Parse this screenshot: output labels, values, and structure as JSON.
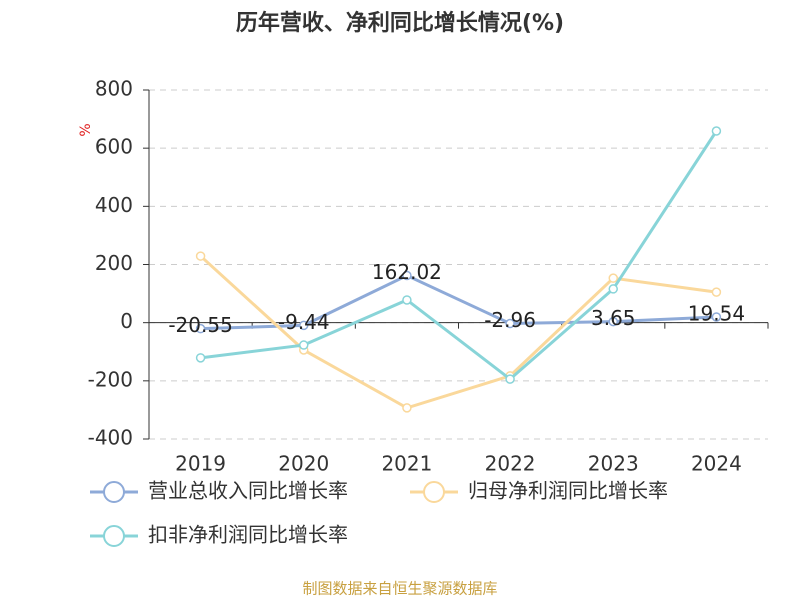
{
  "chart_data": {
    "type": "line",
    "title": "历年营收、净利同比增长情况(%)",
    "y_unit": "%",
    "categories": [
      "2019",
      "2020",
      "2021",
      "2022",
      "2023",
      "2024"
    ],
    "series": [
      {
        "name": "营业总收入同比增长率",
        "color": "#8eaad8",
        "values": [
          -20.55,
          -9.44,
          162.02,
          -2.96,
          3.65,
          19.54
        ],
        "show_labels": true
      },
      {
        "name": "归母净利润同比增长率",
        "color": "#fad89b",
        "values": [
          229,
          -94,
          -293,
          -183,
          153,
          105
        ],
        "show_labels": false
      },
      {
        "name": "扣非净利润同比增长率",
        "color": "#88d4d8",
        "values": [
          -121,
          -77,
          78,
          -194,
          116,
          659
        ],
        "show_labels": false
      }
    ],
    "ylim": [
      -400,
      800
    ],
    "yticks": [
      -400,
      -200,
      0,
      200,
      400,
      600,
      800
    ],
    "grid": true,
    "source": "制图数据来自恒生聚源数据库"
  }
}
